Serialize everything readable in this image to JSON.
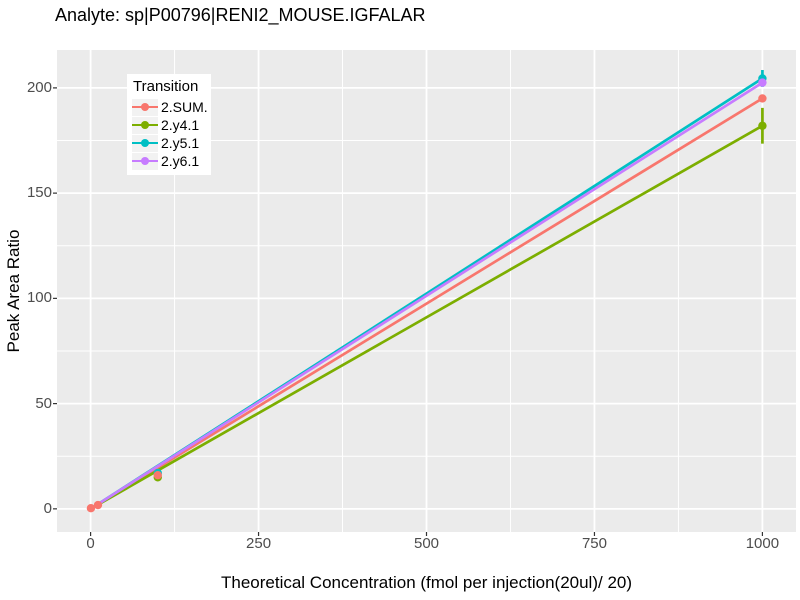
{
  "header": {
    "title": "Analyte: sp|P00796|RENI2_MOUSE.IGFALAR"
  },
  "chart_data": {
    "type": "line",
    "title": "Analyte: sp|P00796|RENI2_MOUSE.IGFALAR",
    "xlabel": "Theoretical Concentration (fmol per injection(20ul)/ 20)",
    "ylabel": "Peak Area Ratio",
    "x_ticks": [
      0,
      250,
      500,
      750,
      1000
    ],
    "x_minor_ticks": [
      125,
      375,
      625,
      875
    ],
    "y_ticks": [
      0,
      50,
      100,
      150,
      200
    ],
    "y_minor_ticks": [
      25,
      75,
      125,
      175
    ],
    "xlim": [
      -50,
      1050
    ],
    "ylim": [
      -11,
      218
    ],
    "grid": true,
    "panel_background": "#EBEBEB",
    "gridline_color": "#FFFFFF",
    "tick_label_color": "#4D4D4D",
    "axis_tick_color": "#333333",
    "legend": {
      "title": "Transition",
      "position": "inside-top-left"
    },
    "series": [
      {
        "name": "2.SUM.",
        "color": "#F8766D",
        "line": [
          [
            0,
            0
          ],
          [
            1000,
            195
          ]
        ],
        "points": [
          [
            0.5,
            0.3
          ],
          [
            11,
            1.8
          ],
          [
            100,
            16
          ],
          [
            1000,
            195
          ]
        ],
        "errorbars": []
      },
      {
        "name": "2.y4.1",
        "color": "#7CAE00",
        "line": [
          [
            0,
            0
          ],
          [
            1000,
            182
          ]
        ],
        "points": [
          [
            100,
            15
          ],
          [
            1000,
            182
          ]
        ],
        "errorbars": [
          [
            1000,
            173.5,
            190.5
          ]
        ]
      },
      {
        "name": "2.y5.1",
        "color": "#00BFC4",
        "line": [
          [
            0,
            0
          ],
          [
            1000,
            204.5
          ]
        ],
        "points": [
          [
            100,
            17
          ],
          [
            1000,
            204.5
          ]
        ],
        "errorbars": [
          [
            1000,
            200.5,
            208.5
          ]
        ]
      },
      {
        "name": "2.y6.1",
        "color": "#C77CFF",
        "line": [
          [
            0,
            0
          ],
          [
            1000,
            202.5
          ]
        ],
        "points": [
          [
            1000,
            202.5
          ]
        ],
        "errorbars": []
      }
    ],
    "point_draw_order": [
      2,
      1,
      3,
      0
    ]
  }
}
